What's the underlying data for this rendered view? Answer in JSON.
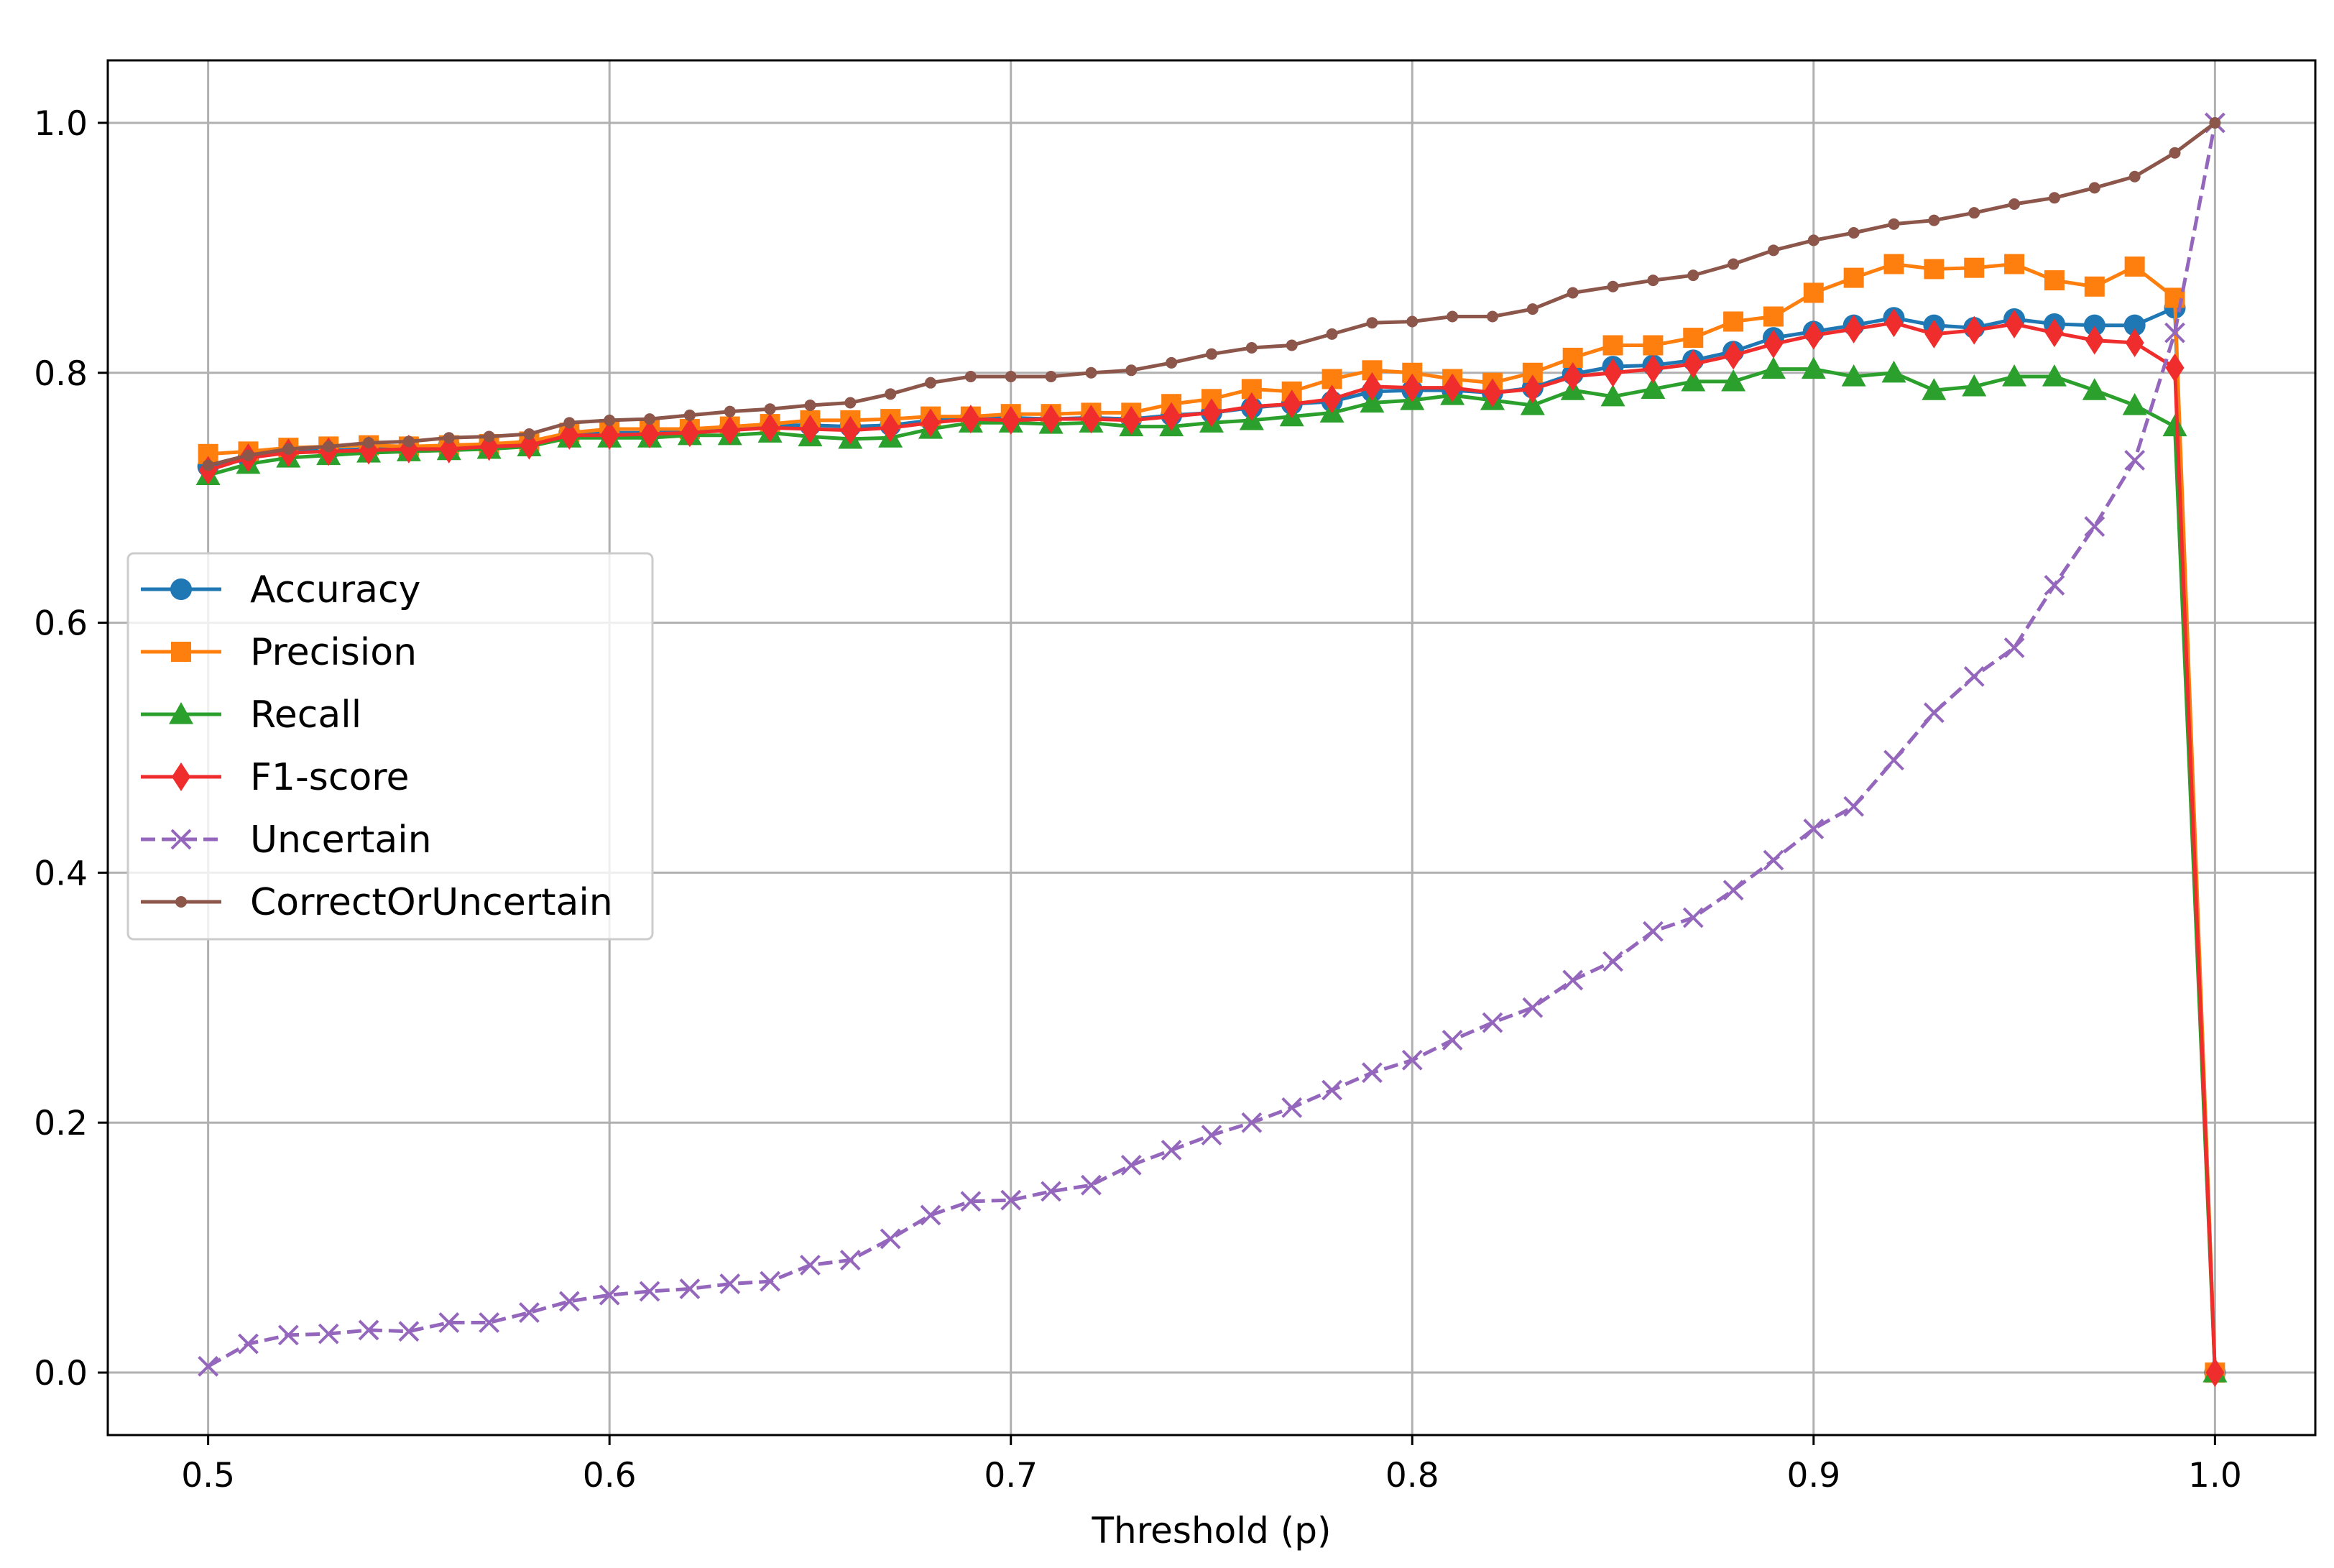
{
  "chart_data": {
    "type": "line",
    "title": "",
    "xlabel": "Threshold (p)",
    "ylabel": "",
    "xlim": [
      0.475,
      1.025
    ],
    "ylim": [
      -0.05,
      1.05
    ],
    "xticks": [
      0.5,
      0.6,
      0.7,
      0.8,
      0.9,
      1.0
    ],
    "xtick_labels": [
      "0.5",
      "0.6",
      "0.7",
      "0.8",
      "0.9",
      "1.0"
    ],
    "yticks": [
      0.0,
      0.2,
      0.4,
      0.6,
      0.8,
      1.0
    ],
    "ytick_labels": [
      "0.0",
      "0.2",
      "0.4",
      "0.6",
      "0.8",
      "1.0"
    ],
    "grid": true,
    "legend_position": "center-left",
    "x": [
      0.5,
      0.51,
      0.52,
      0.53,
      0.54,
      0.55,
      0.56,
      0.57,
      0.58,
      0.59,
      0.6,
      0.61,
      0.62,
      0.63,
      0.64,
      0.65,
      0.66,
      0.67,
      0.68,
      0.69,
      0.7,
      0.71,
      0.72,
      0.73,
      0.74,
      0.75,
      0.76,
      0.77,
      0.78,
      0.79,
      0.8,
      0.81,
      0.82,
      0.83,
      0.84,
      0.85,
      0.86,
      0.87,
      0.88,
      0.89,
      0.9,
      0.91,
      0.92,
      0.93,
      0.94,
      0.95,
      0.96,
      0.97,
      0.98,
      0.99,
      1.0
    ],
    "series": [
      {
        "name": "Accuracy",
        "color": "#1f77b4",
        "marker": "circle",
        "dashed": false,
        "values": [
          0.725,
          0.732,
          0.737,
          0.738,
          0.739,
          0.74,
          0.742,
          0.742,
          0.744,
          0.752,
          0.752,
          0.752,
          0.754,
          0.756,
          0.758,
          0.758,
          0.757,
          0.758,
          0.762,
          0.764,
          0.764,
          0.763,
          0.764,
          0.763,
          0.766,
          0.768,
          0.772,
          0.775,
          0.777,
          0.785,
          0.786,
          0.786,
          0.784,
          0.788,
          0.799,
          0.805,
          0.806,
          0.81,
          0.817,
          0.828,
          0.833,
          0.838,
          0.844,
          0.838,
          0.836,
          0.843,
          0.839,
          0.838,
          0.838,
          0.852,
          0.0
        ]
      },
      {
        "name": "Precision",
        "color": "#ff7f0e",
        "marker": "square",
        "dashed": false,
        "values": [
          0.735,
          0.737,
          0.74,
          0.741,
          0.742,
          0.741,
          0.742,
          0.743,
          0.745,
          0.752,
          0.755,
          0.755,
          0.755,
          0.757,
          0.759,
          0.762,
          0.762,
          0.763,
          0.765,
          0.765,
          0.767,
          0.767,
          0.768,
          0.768,
          0.775,
          0.779,
          0.787,
          0.785,
          0.795,
          0.802,
          0.8,
          0.795,
          0.792,
          0.8,
          0.812,
          0.822,
          0.822,
          0.828,
          0.841,
          0.845,
          0.864,
          0.876,
          0.887,
          0.883,
          0.884,
          0.887,
          0.874,
          0.869,
          0.885,
          0.86,
          0.0
        ]
      },
      {
        "name": "Recall",
        "color": "#2ca02c",
        "marker": "triangle",
        "dashed": false,
        "values": [
          0.718,
          0.727,
          0.732,
          0.734,
          0.736,
          0.737,
          0.738,
          0.739,
          0.741,
          0.748,
          0.748,
          0.748,
          0.75,
          0.75,
          0.752,
          0.749,
          0.747,
          0.748,
          0.755,
          0.76,
          0.76,
          0.759,
          0.76,
          0.757,
          0.757,
          0.76,
          0.762,
          0.765,
          0.768,
          0.776,
          0.778,
          0.782,
          0.778,
          0.774,
          0.786,
          0.781,
          0.787,
          0.793,
          0.793,
          0.803,
          0.803,
          0.797,
          0.8,
          0.786,
          0.789,
          0.797,
          0.797,
          0.786,
          0.774,
          0.757,
          0.0
        ]
      },
      {
        "name": "F1-score",
        "color": "#ef2d2d",
        "marker": "diamond",
        "dashed": false,
        "values": [
          0.722,
          0.732,
          0.736,
          0.737,
          0.738,
          0.739,
          0.739,
          0.741,
          0.742,
          0.75,
          0.75,
          0.751,
          0.752,
          0.754,
          0.756,
          0.755,
          0.754,
          0.756,
          0.76,
          0.763,
          0.762,
          0.763,
          0.763,
          0.762,
          0.765,
          0.768,
          0.773,
          0.775,
          0.779,
          0.789,
          0.788,
          0.788,
          0.784,
          0.787,
          0.797,
          0.8,
          0.803,
          0.807,
          0.814,
          0.823,
          0.83,
          0.835,
          0.84,
          0.831,
          0.834,
          0.839,
          0.832,
          0.826,
          0.824,
          0.804,
          0.0
        ]
      },
      {
        "name": "Uncertain",
        "color": "#9467bd",
        "marker": "x",
        "dashed": true,
        "values": [
          0.005,
          0.023,
          0.03,
          0.031,
          0.034,
          0.033,
          0.04,
          0.04,
          0.048,
          0.057,
          0.062,
          0.065,
          0.067,
          0.071,
          0.073,
          0.086,
          0.09,
          0.107,
          0.126,
          0.137,
          0.138,
          0.145,
          0.15,
          0.166,
          0.178,
          0.19,
          0.2,
          0.212,
          0.226,
          0.24,
          0.25,
          0.266,
          0.28,
          0.292,
          0.314,
          0.329,
          0.353,
          0.364,
          0.386,
          0.41,
          0.435,
          0.453,
          0.49,
          0.528,
          0.557,
          0.58,
          0.63,
          0.677,
          0.73,
          0.832,
          1.0
        ]
      },
      {
        "name": "CorrectOrUncertain",
        "color": "#8c564b",
        "marker": "dot",
        "dashed": false,
        "values": [
          0.726,
          0.734,
          0.739,
          0.741,
          0.744,
          0.745,
          0.748,
          0.749,
          0.751,
          0.76,
          0.762,
          0.763,
          0.766,
          0.769,
          0.771,
          0.774,
          0.776,
          0.783,
          0.792,
          0.797,
          0.797,
          0.797,
          0.8,
          0.802,
          0.808,
          0.815,
          0.82,
          0.822,
          0.831,
          0.84,
          0.841,
          0.845,
          0.845,
          0.851,
          0.864,
          0.869,
          0.874,
          0.878,
          0.887,
          0.898,
          0.906,
          0.912,
          0.919,
          0.922,
          0.928,
          0.935,
          0.94,
          0.948,
          0.957,
          0.976,
          1.0
        ]
      }
    ]
  }
}
